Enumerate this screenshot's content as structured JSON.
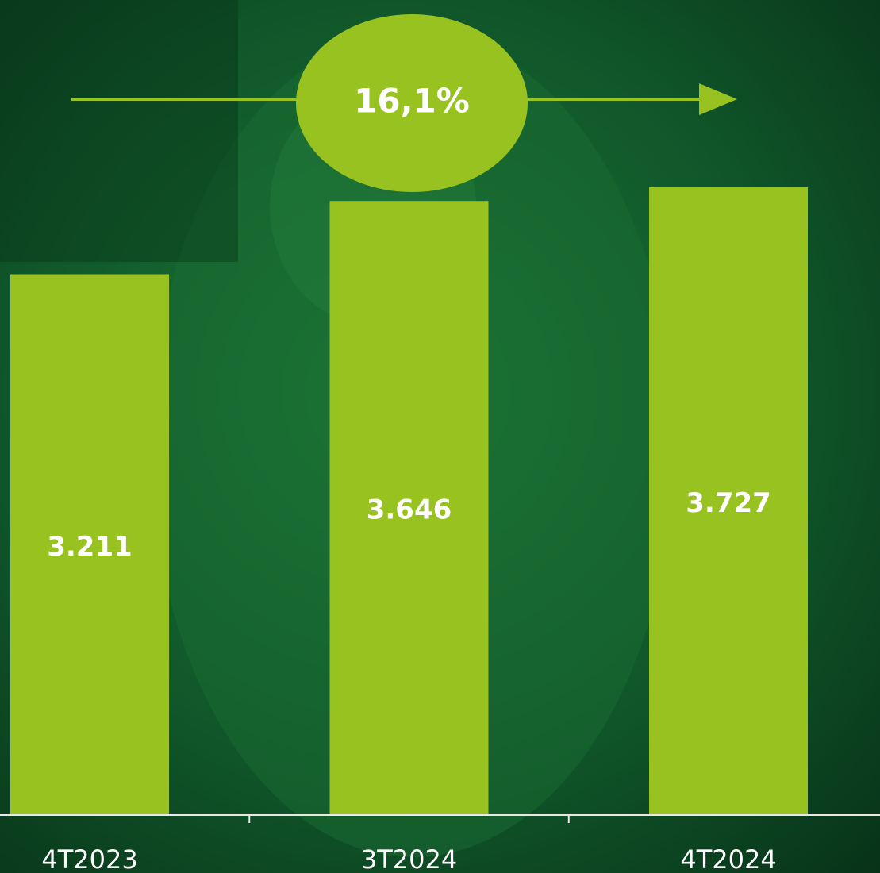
{
  "chart_data": {
    "type": "bar",
    "annotation": "16,1%",
    "categories": [
      "4T2023",
      "3T2024",
      "4T2024"
    ],
    "values": [
      3211,
      3646,
      3727
    ],
    "value_labels": [
      "3.211",
      "3.646",
      "3.727"
    ],
    "color": "#97c21f"
  }
}
